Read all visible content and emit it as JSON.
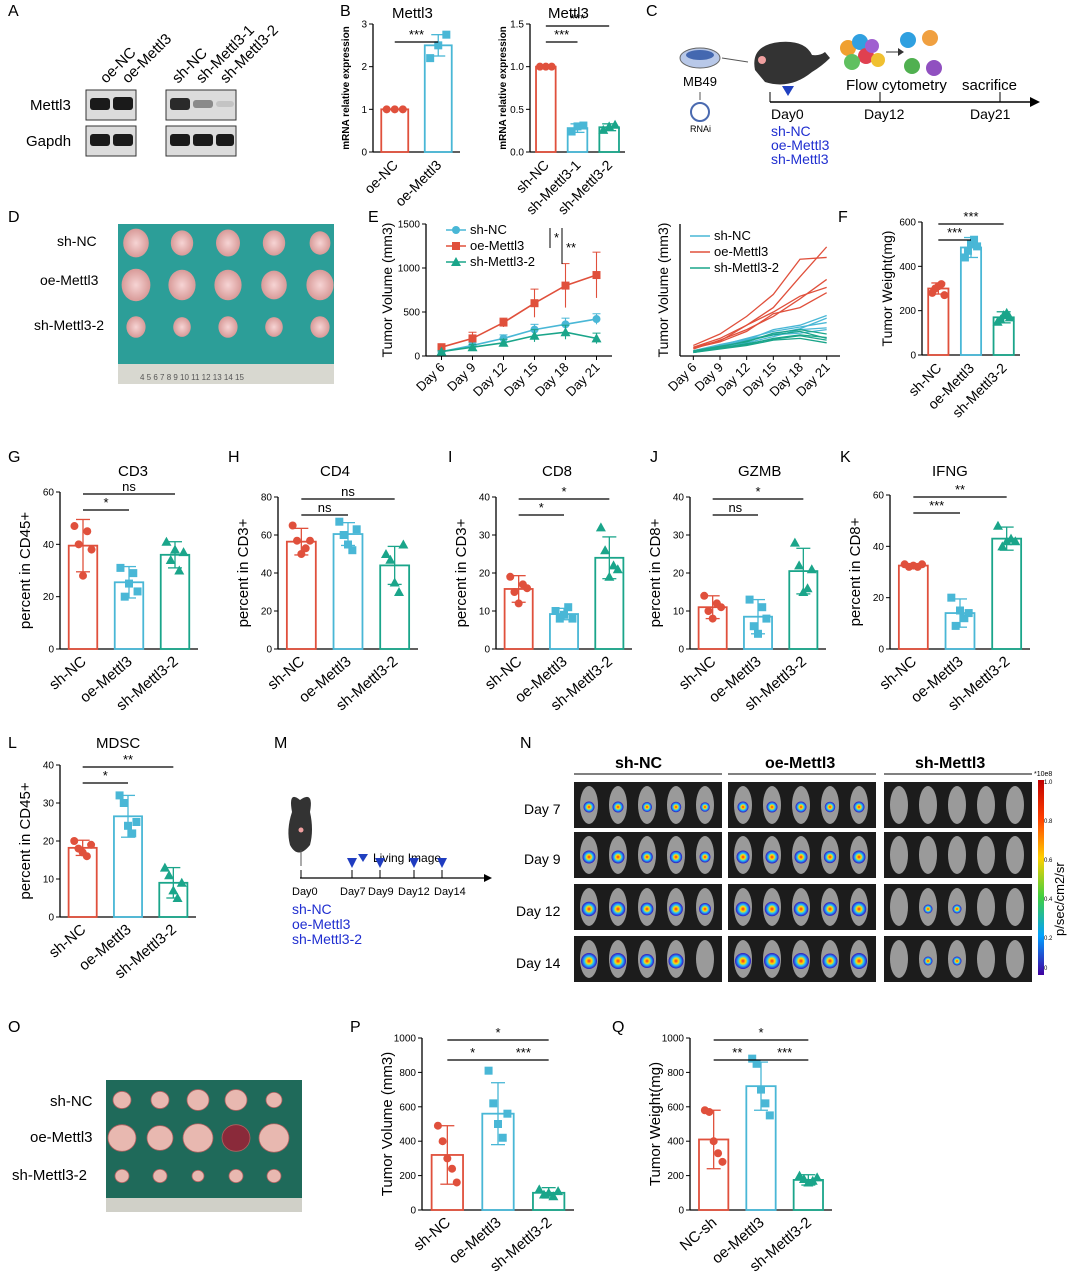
{
  "colors": {
    "red": "#e0503c",
    "blue": "#49b7d6",
    "green": "#1aa58a",
    "text_blue": "#1f2ed0"
  },
  "panels": {
    "A": {
      "letter": "A",
      "lanes_left": [
        "oe-NC",
        "oe-Mettl3"
      ],
      "lanes_right": [
        "sh-NC",
        "sh-Mettl3-1",
        "sh-Mettl3-2"
      ],
      "rows": [
        "Mettl3",
        "Gapdh"
      ]
    },
    "B": {
      "letter": "B"
    },
    "C": {
      "letter": "C",
      "cell": "MB49",
      "rnai": "RNAi",
      "flow": "Flow cytometry",
      "sacrifice": "sacrifice",
      "days": [
        "Day0",
        "Day12",
        "Day21"
      ],
      "groups": [
        "sh-NC",
        "oe-Mettl3",
        "sh-Mettl3"
      ]
    },
    "D": {
      "letter": "D",
      "rows": [
        "sh-NC",
        "oe-Mettl3",
        "sh-Mettl3-2"
      ],
      "ruler": "4 5 6 7 8 9 10 11 12 13 14 15"
    },
    "E": {
      "letter": "E"
    },
    "F": {
      "letter": "F"
    },
    "G": {
      "letter": "G"
    },
    "H": {
      "letter": "H"
    },
    "I": {
      "letter": "I"
    },
    "J": {
      "letter": "J"
    },
    "K": {
      "letter": "K"
    },
    "L": {
      "letter": "L"
    },
    "M": {
      "letter": "M",
      "legend": "Living Image",
      "days": [
        "Day0",
        "Day7",
        "Day9",
        "Day12",
        "Day14"
      ],
      "groups": [
        "sh-NC",
        "oe-Mettl3",
        "sh-Mettl3-2"
      ]
    },
    "N": {
      "letter": "N",
      "groups": [
        "sh-NC",
        "oe-Mettl3",
        "sh-Mettl3"
      ],
      "rows": [
        "Day 7",
        "Day 9",
        "Day 12",
        "Day 14"
      ],
      "scale_label": "p/sec/cm2/sr",
      "scale_exp": "*10e8",
      "scale_ticks": [
        "1.0",
        "0.8",
        "0.6",
        "0.4",
        "0.2",
        "0"
      ]
    },
    "O": {
      "letter": "O",
      "rows": [
        "sh-NC",
        "oe-Mettl3",
        "sh-Mettl3-2"
      ]
    },
    "P": {
      "letter": "P"
    },
    "Q": {
      "letter": "Q"
    }
  },
  "chart_data": [
    {
      "id": "B1",
      "type": "bar",
      "title": "Mettl3",
      "ylabel": "mRNA relative expression",
      "categories": [
        "oe-NC",
        "oe-Mettl3"
      ],
      "values": [
        1.0,
        2.5
      ],
      "sd": [
        0,
        0.25
      ],
      "points": [
        [
          1,
          1,
          1
        ],
        [
          2.2,
          2.5,
          2.75
        ]
      ],
      "ylim": [
        0,
        3
      ],
      "yticks": [
        "0",
        "1",
        "2",
        "3"
      ],
      "sig": [
        {
          "a": 0,
          "b": 1,
          "label": "***"
        }
      ]
    },
    {
      "id": "B2",
      "type": "bar",
      "title": "Mettl3",
      "ylabel": "mRNA relative expression",
      "categories": [
        "sh-NC",
        "sh-Mettl3-1",
        "sh-Mettl3-2"
      ],
      "values": [
        1.0,
        0.28,
        0.29
      ],
      "sd": [
        0,
        0.05,
        0.04
      ],
      "points": [
        [
          1,
          1,
          1
        ],
        [
          0.24,
          0.3,
          0.31
        ],
        [
          0.26,
          0.3,
          0.32
        ]
      ],
      "ylim": [
        0,
        1.5
      ],
      "yticks": [
        "0.0",
        "0.5",
        "1.0",
        "1.5"
      ],
      "sig": [
        {
          "a": 0,
          "b": 1,
          "label": "***"
        },
        {
          "a": 0,
          "b": 2,
          "label": "***"
        }
      ]
    },
    {
      "id": "E1",
      "type": "line",
      "ylabel": "Tumor Volume (mm3)",
      "categories": [
        "Day 6",
        "Day 9",
        "Day 12",
        "Day 15",
        "Day 18",
        "Day 21"
      ],
      "ylim": [
        0,
        1500
      ],
      "yticks": [
        "0",
        "500",
        "1000",
        "1500"
      ],
      "series": [
        {
          "name": "sh-NC",
          "values": [
            50,
            120,
            200,
            300,
            360,
            420
          ],
          "err": [
            10,
            30,
            40,
            60,
            70,
            60
          ]
        },
        {
          "name": "oe-Mettl3",
          "values": [
            100,
            200,
            380,
            600,
            800,
            920
          ],
          "err": [
            20,
            70,
            50,
            160,
            250,
            260
          ]
        },
        {
          "name": "sh-Mettl3-2",
          "values": [
            50,
            100,
            150,
            230,
            270,
            200
          ],
          "err": [
            10,
            30,
            40,
            70,
            80,
            60
          ]
        }
      ],
      "legend_sig": [
        "*",
        "**"
      ]
    },
    {
      "id": "E2",
      "type": "line",
      "ylabel": "Tumor Volume (mm3)",
      "categories": [
        "Day 6",
        "Day 9",
        "Day 12",
        "Day 15",
        "Day 18",
        "Day 21"
      ],
      "ylim": [
        0,
        1500
      ],
      "legend": [
        "sh-NC",
        "oe-Mettl3",
        "sh-Mettl3-2"
      ],
      "series": [
        {
          "name": "sh-NC",
          "values": [
            60,
            120,
            200,
            280,
            330,
            380
          ]
        },
        {
          "name": "sh-NC",
          "values": [
            40,
            100,
            170,
            250,
            310,
            430
          ]
        },
        {
          "name": "sh-NC",
          "values": [
            50,
            90,
            150,
            220,
            300,
            320
          ]
        },
        {
          "name": "sh-NC",
          "values": [
            40,
            110,
            180,
            300,
            350,
            460
          ]
        },
        {
          "name": "sh-NC",
          "values": [
            60,
            130,
            190,
            240,
            260,
            300
          ]
        },
        {
          "name": "oe-Mettl3",
          "values": [
            100,
            200,
            350,
            550,
            900,
            1240
          ]
        },
        {
          "name": "oe-Mettl3",
          "values": [
            120,
            250,
            450,
            700,
            1100,
            1120
          ]
        },
        {
          "name": "oe-Mettl3",
          "values": [
            80,
            180,
            300,
            450,
            650,
            870
          ]
        },
        {
          "name": "oe-Mettl3",
          "values": [
            100,
            170,
            350,
            500,
            680,
            780
          ]
        },
        {
          "name": "oe-Mettl3",
          "values": [
            90,
            160,
            280,
            480,
            550,
            720
          ]
        },
        {
          "name": "sh-Mettl3-2",
          "values": [
            50,
            90,
            130,
            200,
            240,
            210
          ]
        },
        {
          "name": "sh-Mettl3-2",
          "values": [
            40,
            80,
            120,
            180,
            200,
            150
          ]
        },
        {
          "name": "sh-Mettl3-2",
          "values": [
            60,
            110,
            160,
            260,
            300,
            250
          ]
        },
        {
          "name": "sh-Mettl3-2",
          "values": [
            50,
            100,
            170,
            240,
            280,
            200
          ]
        },
        {
          "name": "sh-Mettl3-2",
          "values": [
            40,
            90,
            140,
            190,
            230,
            180
          ]
        }
      ]
    },
    {
      "id": "F",
      "type": "bar",
      "ylabel": "Tumor Weight(mg)",
      "categories": [
        "sh-NC",
        "oe-Mettl3",
        "sh-Mettl3-2"
      ],
      "values": [
        300,
        485,
        170
      ],
      "sd": [
        25,
        45,
        25
      ],
      "points": [
        [
          280,
          300,
          310,
          320,
          270
        ],
        [
          440,
          470,
          500,
          520,
          490
        ],
        [
          150,
          160,
          180,
          190,
          170
        ]
      ],
      "ylim": [
        0,
        600
      ],
      "yticks": [
        "0",
        "200",
        "400",
        "600"
      ],
      "sig": [
        {
          "a": 0,
          "b": 1,
          "label": "***"
        },
        {
          "a": 0,
          "b": 2,
          "label": "***"
        }
      ]
    },
    {
      "id": "G",
      "type": "bar",
      "title": "CD3",
      "ylabel": "percent in CD45+",
      "categories": [
        "sh-NC",
        "oe-Mettl3",
        "sh-Mettl3-2"
      ],
      "values": [
        39.5,
        25.5,
        36
      ],
      "sd": [
        10,
        6,
        5
      ],
      "points": [
        [
          47,
          40,
          28,
          45,
          38
        ],
        [
          31,
          20,
          25,
          29,
          22
        ],
        [
          41,
          34,
          38,
          30,
          37
        ]
      ],
      "ylim": [
        0,
        60
      ],
      "yticks": [
        "0",
        "20",
        "40",
        "60"
      ],
      "sig": [
        {
          "a": 0,
          "b": 1,
          "label": "*"
        },
        {
          "a": 0,
          "b": 2,
          "label": "ns"
        }
      ]
    },
    {
      "id": "H",
      "type": "bar",
      "title": "CD4",
      "ylabel": "percent in CD3+",
      "categories": [
        "sh-NC",
        "oe-Mettl3",
        "sh-Mettl3-2"
      ],
      "values": [
        56.5,
        60.5,
        44
      ],
      "sd": [
        7,
        6,
        10
      ],
      "points": [
        [
          65,
          57,
          50,
          53,
          57
        ],
        [
          67,
          60,
          55,
          52,
          63
        ],
        [
          50,
          47,
          35,
          30,
          55
        ]
      ],
      "ylim": [
        0,
        80
      ],
      "yticks": [
        "0",
        "20",
        "40",
        "60",
        "80"
      ],
      "sig": [
        {
          "a": 0,
          "b": 1,
          "label": "ns"
        },
        {
          "a": 0,
          "b": 2,
          "label": "ns"
        }
      ]
    },
    {
      "id": "I",
      "type": "bar",
      "title": "CD8",
      "ylabel": "percent in CD3+",
      "categories": [
        "sh-NC",
        "oe-Mettl3",
        "sh-Mettl3-2"
      ],
      "values": [
        15.8,
        9.2,
        24
      ],
      "sd": [
        3.5,
        1.5,
        5.5
      ],
      "points": [
        [
          19,
          15,
          12,
          17,
          16
        ],
        [
          10,
          8,
          9,
          11,
          8
        ],
        [
          32,
          26,
          19,
          22,
          21
        ]
      ],
      "ylim": [
        0,
        40
      ],
      "yticks": [
        "0",
        "10",
        "20",
        "30",
        "40"
      ],
      "sig": [
        {
          "a": 0,
          "b": 1,
          "label": "*"
        },
        {
          "a": 0,
          "b": 2,
          "label": "*"
        }
      ]
    },
    {
      "id": "J",
      "type": "bar",
      "title": "GZMB",
      "ylabel": "percent in CD8+",
      "categories": [
        "sh-NC",
        "oe-Mettl3",
        "sh-Mettl3-2"
      ],
      "values": [
        11,
        8.5,
        20.5
      ],
      "sd": [
        3,
        4.5,
        6
      ],
      "points": [
        [
          14,
          10,
          8,
          12,
          11
        ],
        [
          13,
          6,
          4,
          11,
          8
        ],
        [
          28,
          22,
          15,
          16,
          21
        ]
      ],
      "ylim": [
        0,
        40
      ],
      "yticks": [
        "0",
        "10",
        "20",
        "30",
        "40"
      ],
      "sig": [
        {
          "a": 0,
          "b": 1,
          "label": "ns"
        },
        {
          "a": 0,
          "b": 2,
          "label": "*"
        }
      ]
    },
    {
      "id": "K",
      "type": "bar",
      "title": "IFNG",
      "ylabel": "percent in CD8+",
      "categories": [
        "sh-NC",
        "oe-Mettl3",
        "sh-Mettl3-2"
      ],
      "values": [
        32.5,
        14,
        43
      ],
      "sd": [
        0.5,
        5.5,
        4.5
      ],
      "points": [
        [
          33,
          32,
          32.5,
          32,
          33
        ],
        [
          20,
          9,
          15,
          12,
          14
        ],
        [
          48,
          40,
          42,
          43,
          42
        ]
      ],
      "ylim": [
        0,
        60
      ],
      "yticks": [
        "0",
        "20",
        "40",
        "60"
      ],
      "sig": [
        {
          "a": 0,
          "b": 1,
          "label": "***"
        },
        {
          "a": 0,
          "b": 2,
          "label": "**"
        }
      ]
    },
    {
      "id": "L",
      "type": "bar",
      "title": "MDSC",
      "ylabel": "percent in CD45+",
      "categories": [
        "sh-NC",
        "oe-Mettl3",
        "sh-Mettl3-2"
      ],
      "values": [
        18.2,
        26.5,
        9
      ],
      "sd": [
        2,
        5.5,
        4
      ],
      "points": [
        [
          20,
          18,
          17,
          16,
          19
        ],
        [
          32,
          30,
          24,
          22,
          25
        ],
        [
          13,
          11,
          7,
          5,
          9
        ]
      ],
      "ylim": [
        0,
        40
      ],
      "yticks": [
        "0",
        "10",
        "20",
        "30",
        "40"
      ],
      "sig": [
        {
          "a": 0,
          "b": 1,
          "label": "*"
        },
        {
          "a": 0,
          "b": 2,
          "label": "**"
        }
      ]
    },
    {
      "id": "P",
      "type": "bar",
      "ylabel": "Tumor Volume (mm3)",
      "categories": [
        "sh-NC",
        "oe-Mettl3",
        "sh-Mettl3-2"
      ],
      "values": [
        320,
        560,
        100
      ],
      "sd": [
        170,
        180,
        30
      ],
      "points": [
        [
          490,
          400,
          300,
          240,
          160
        ],
        [
          810,
          620,
          500,
          420,
          560
        ],
        [
          120,
          90,
          100,
          80,
          110
        ]
      ],
      "ylim": [
        0,
        1000
      ],
      "yticks": [
        "0",
        "200",
        "400",
        "600",
        "800",
        "1000"
      ],
      "sig": [
        {
          "a": 0,
          "b": 1,
          "label": "*"
        },
        {
          "a": 1,
          "b": 2,
          "label": "***"
        },
        {
          "a": 0,
          "b": 2,
          "label": "*"
        }
      ]
    },
    {
      "id": "Q",
      "type": "bar",
      "ylabel": "Tumor Weight(mg)",
      "categories": [
        "NC-sh",
        "oe-Mettl3",
        "sh-Mettl3-2"
      ],
      "values": [
        410,
        720,
        175
      ],
      "sd": [
        170,
        140,
        30
      ],
      "points": [
        [
          580,
          570,
          400,
          330,
          280
        ],
        [
          880,
          850,
          700,
          620,
          550
        ],
        [
          200,
          180,
          160,
          170,
          190
        ]
      ],
      "ylim": [
        0,
        1000
      ],
      "yticks": [
        "0",
        "200",
        "400",
        "600",
        "800",
        "1000"
      ],
      "sig": [
        {
          "a": 0,
          "b": 1,
          "label": "**"
        },
        {
          "a": 1,
          "b": 2,
          "label": "***"
        },
        {
          "a": 0,
          "b": 2,
          "label": "*"
        }
      ]
    }
  ]
}
